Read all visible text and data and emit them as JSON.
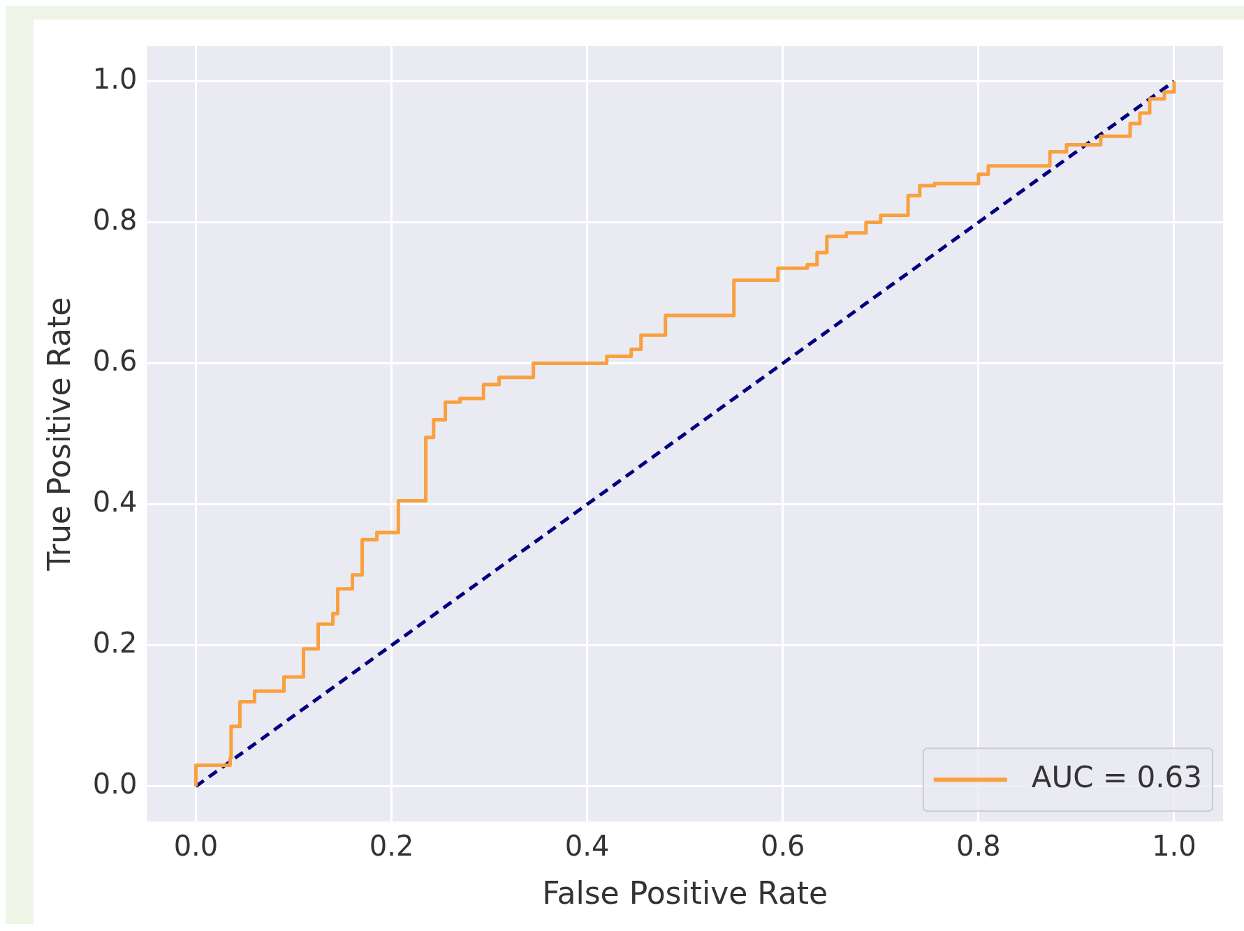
{
  "chart_data": {
    "type": "step",
    "xlabel": "False Positive Rate",
    "ylabel": "True Positive Rate",
    "xlim": [
      -0.05,
      1.05
    ],
    "ylim": [
      -0.05,
      1.05
    ],
    "xticks": [
      {
        "value": 0,
        "label": "0.0"
      },
      {
        "value": 0.2,
        "label": "0.2"
      },
      {
        "value": 0.4,
        "label": "0.4"
      },
      {
        "value": 0.6,
        "label": "0.6"
      },
      {
        "value": 0.8,
        "label": "0.8"
      },
      {
        "value": 1,
        "label": "1.0"
      }
    ],
    "yticks": [
      {
        "value": 0,
        "label": "0.0"
      },
      {
        "value": 0.2,
        "label": "0.2"
      },
      {
        "value": 0.4,
        "label": "0.4"
      },
      {
        "value": 0.6,
        "label": "0.6"
      },
      {
        "value": 0.8,
        "label": "0.8"
      },
      {
        "value": 1,
        "label": "1.0"
      }
    ],
    "grid": true,
    "legend": "bottom right",
    "series": [
      {
        "name": "AUC = 0.63",
        "color": "#f9a03f",
        "line_style": "solid",
        "x": [
          0,
          0,
          0.035,
          0.036,
          0.045,
          0.06,
          0.09,
          0.11,
          0.125,
          0.14,
          0.145,
          0.16,
          0.17,
          0.185,
          0.207,
          0.235,
          0.243,
          0.255,
          0.27,
          0.294,
          0.31,
          0.345,
          0.42,
          0.445,
          0.455,
          0.48,
          0.55,
          0.595,
          0.625,
          0.635,
          0.645,
          0.665,
          0.685,
          0.7,
          0.728,
          0.74,
          0.755,
          0.8,
          0.81,
          0.873,
          0.89,
          0.925,
          0.955,
          0.965,
          0.975,
          0.99,
          1,
          1
        ],
        "values": [
          0,
          0.03,
          0.04,
          0.085,
          0.12,
          0.135,
          0.155,
          0.195,
          0.23,
          0.245,
          0.28,
          0.3,
          0.35,
          0.36,
          0.405,
          0.495,
          0.52,
          0.545,
          0.55,
          0.57,
          0.58,
          0.6,
          0.61,
          0.62,
          0.64,
          0.668,
          0.718,
          0.735,
          0.74,
          0.757,
          0.78,
          0.785,
          0.8,
          0.81,
          0.838,
          0.852,
          0.855,
          0.868,
          0.88,
          0.9,
          0.91,
          0.922,
          0.94,
          0.955,
          0.975,
          0.985,
          0.985,
          1
        ]
      },
      {
        "color": "#000080",
        "type": "line",
        "line_style": "dashed",
        "x": [
          0,
          1
        ],
        "values": [
          0,
          1
        ]
      }
    ]
  }
}
